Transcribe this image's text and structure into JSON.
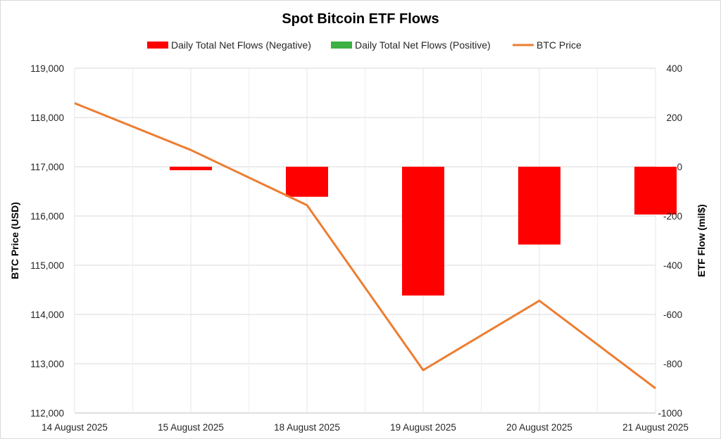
{
  "chart_data": {
    "type": "bar",
    "title": "Spot Bitcoin ETF Flows",
    "categories": [
      "14 August 2025",
      "15 August 2025",
      "18 August 2025",
      "19 August 2025",
      "20 August 2025",
      "21 August 2025"
    ],
    "series": [
      {
        "name": "Daily Total Net Flows (Negative)",
        "type": "bar",
        "axis": "right",
        "color": "#ff0000",
        "values": [
          0,
          -14,
          -122,
          -523,
          -316,
          -194
        ]
      },
      {
        "name": "Daily Total Net Flows (Positive)",
        "type": "bar",
        "axis": "right",
        "color": "#3cb043",
        "values": [
          0,
          0,
          0,
          0,
          0,
          0
        ]
      },
      {
        "name": "BTC Price",
        "type": "line",
        "axis": "left",
        "color": "#ed7d31",
        "values": [
          118290,
          117340,
          116220,
          112870,
          114280,
          112500
        ]
      }
    ],
    "y_left": {
      "label": "BTC Price (USD)",
      "range": [
        112000,
        119000
      ],
      "ticks": [
        "119,000",
        "118,000",
        "117,000",
        "116,000",
        "115,000",
        "114,000",
        "113,000",
        "112,000"
      ]
    },
    "y_right": {
      "label": "ETF Flow (mil$)",
      "range": [
        -1000,
        400
      ],
      "ticks": [
        "400",
        "200",
        "0",
        "-200",
        "-400",
        "-600",
        "-800",
        "-1000"
      ]
    },
    "grid": true,
    "legend": "top"
  }
}
